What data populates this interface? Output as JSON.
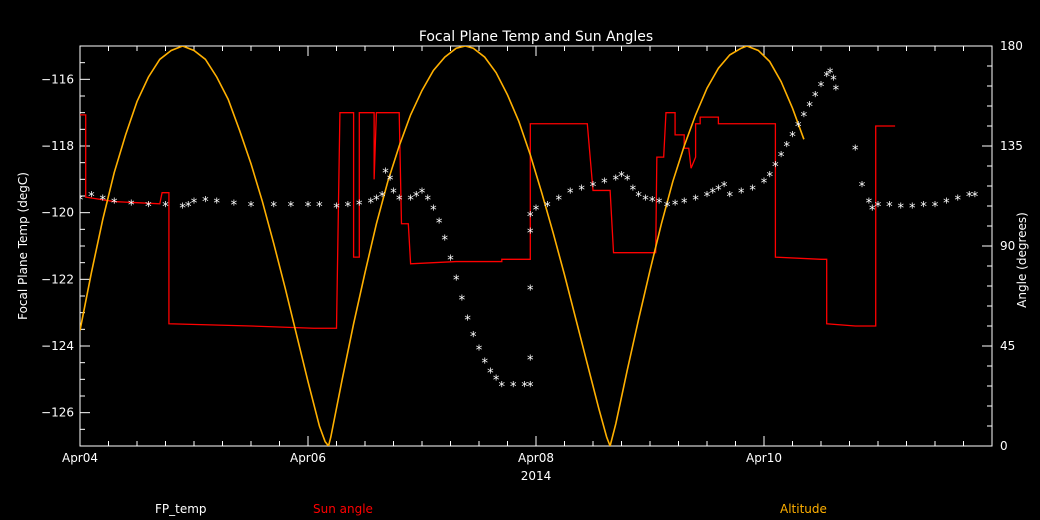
{
  "chart_data": {
    "type": "line",
    "title": "Focal Plane Temp and Sun Angles",
    "xlabel": "2014",
    "ylabel": "Focal Plane Temp (degC)",
    "y2label": "Angle (degrees)",
    "x_range": [
      0,
      8
    ],
    "x_ticks": [
      {
        "x": 0,
        "label": "Apr04"
      },
      {
        "x": 2,
        "label": "Apr06"
      },
      {
        "x": 4,
        "label": "Apr08"
      },
      {
        "x": 6,
        "label": "Apr10"
      }
    ],
    "ylim": [
      -127,
      -115
    ],
    "y_ticks": [
      -116,
      -118,
      -120,
      -122,
      -124,
      -126
    ],
    "y2lim": [
      0,
      180
    ],
    "y2_ticks": [
      0,
      45,
      90,
      135,
      180
    ],
    "grid": false,
    "legend_position": "bottom",
    "colors": {
      "background": "#000000",
      "axes": "#ffffff",
      "fp_temp": "#ffffff",
      "sun_angle": "#ff0000",
      "altitude": "#ffb000"
    },
    "series": [
      {
        "name": "FP_temp",
        "axis": "left",
        "marker": "star",
        "points": [
          [
            0.0,
            -119.6
          ],
          [
            0.1,
            -119.5
          ],
          [
            0.2,
            -119.6
          ],
          [
            0.3,
            -119.7
          ],
          [
            0.45,
            -119.75
          ],
          [
            0.6,
            -119.8
          ],
          [
            0.75,
            -119.8
          ],
          [
            0.9,
            -119.85
          ],
          [
            0.95,
            -119.8
          ],
          [
            1.0,
            -119.7
          ],
          [
            1.1,
            -119.65
          ],
          [
            1.2,
            -119.7
          ],
          [
            1.35,
            -119.75
          ],
          [
            1.5,
            -119.8
          ],
          [
            1.7,
            -119.8
          ],
          [
            1.85,
            -119.8
          ],
          [
            2.0,
            -119.8
          ],
          [
            2.1,
            -119.8
          ],
          [
            2.25,
            -119.85
          ],
          [
            2.35,
            -119.8
          ],
          [
            2.45,
            -119.75
          ],
          [
            2.55,
            -119.7
          ],
          [
            2.6,
            -119.6
          ],
          [
            2.65,
            -119.5
          ],
          [
            2.68,
            -118.8
          ],
          [
            2.72,
            -119.0
          ],
          [
            2.75,
            -119.4
          ],
          [
            2.8,
            -119.6
          ],
          [
            2.9,
            -119.6
          ],
          [
            2.95,
            -119.5
          ],
          [
            3.0,
            -119.4
          ],
          [
            3.05,
            -119.6
          ],
          [
            3.1,
            -119.9
          ],
          [
            3.15,
            -120.3
          ],
          [
            3.2,
            -120.8
          ],
          [
            3.25,
            -121.4
          ],
          [
            3.3,
            -122.0
          ],
          [
            3.35,
            -122.6
          ],
          [
            3.4,
            -123.2
          ],
          [
            3.45,
            -123.7
          ],
          [
            3.5,
            -124.1
          ],
          [
            3.55,
            -124.5
          ],
          [
            3.6,
            -124.8
          ],
          [
            3.65,
            -125.0
          ],
          [
            3.7,
            -125.2
          ],
          [
            3.8,
            -125.2
          ],
          [
            3.9,
            -125.2
          ],
          [
            3.95,
            -125.2
          ],
          [
            3.95,
            -124.4
          ],
          [
            3.95,
            -122.3
          ],
          [
            3.95,
            -120.6
          ],
          [
            3.95,
            -120.1
          ],
          [
            4.0,
            -119.9
          ],
          [
            4.1,
            -119.8
          ],
          [
            4.2,
            -119.6
          ],
          [
            4.3,
            -119.4
          ],
          [
            4.4,
            -119.3
          ],
          [
            4.5,
            -119.2
          ],
          [
            4.6,
            -119.1
          ],
          [
            4.7,
            -119.0
          ],
          [
            4.75,
            -118.9
          ],
          [
            4.8,
            -119.0
          ],
          [
            4.85,
            -119.3
          ],
          [
            4.9,
            -119.5
          ],
          [
            4.96,
            -119.6
          ],
          [
            5.02,
            -119.65
          ],
          [
            5.08,
            -119.7
          ],
          [
            5.15,
            -119.8
          ],
          [
            5.22,
            -119.75
          ],
          [
            5.3,
            -119.7
          ],
          [
            5.4,
            -119.6
          ],
          [
            5.5,
            -119.5
          ],
          [
            5.55,
            -119.4
          ],
          [
            5.6,
            -119.3
          ],
          [
            5.65,
            -119.2
          ],
          [
            5.7,
            -119.5
          ],
          [
            5.8,
            -119.4
          ],
          [
            5.9,
            -119.3
          ],
          [
            6.0,
            -119.1
          ],
          [
            6.05,
            -118.9
          ],
          [
            6.1,
            -118.6
          ],
          [
            6.15,
            -118.3
          ],
          [
            6.2,
            -118.0
          ],
          [
            6.25,
            -117.7
          ],
          [
            6.3,
            -117.4
          ],
          [
            6.35,
            -117.1
          ],
          [
            6.4,
            -116.8
          ],
          [
            6.45,
            -116.5
          ],
          [
            6.5,
            -116.2
          ],
          [
            6.55,
            -115.9
          ],
          [
            6.58,
            -115.8
          ],
          [
            6.61,
            -116.0
          ],
          [
            6.63,
            -116.3
          ],
          [
            6.8,
            -118.1
          ],
          [
            6.86,
            -119.2
          ],
          [
            6.92,
            -119.7
          ],
          [
            6.95,
            -119.9
          ],
          [
            7.0,
            -119.8
          ],
          [
            7.1,
            -119.8
          ],
          [
            7.2,
            -119.85
          ],
          [
            7.3,
            -119.85
          ],
          [
            7.4,
            -119.8
          ],
          [
            7.5,
            -119.8
          ],
          [
            7.6,
            -119.7
          ],
          [
            7.7,
            -119.6
          ],
          [
            7.8,
            -119.5
          ],
          [
            7.85,
            -119.5
          ]
        ]
      },
      {
        "name": "Sun angle",
        "axis": "right",
        "step": true,
        "points": [
          [
            0.0,
            149
          ],
          [
            0.05,
            149
          ],
          [
            0.05,
            112
          ],
          [
            0.3,
            110
          ],
          [
            0.7,
            109
          ],
          [
            0.72,
            114
          ],
          [
            0.78,
            114
          ],
          [
            0.78,
            55
          ],
          [
            1.5,
            54
          ],
          [
            2.05,
            53
          ],
          [
            2.25,
            53
          ],
          [
            2.28,
            150
          ],
          [
            2.4,
            150
          ],
          [
            2.4,
            85
          ],
          [
            2.45,
            85
          ],
          [
            2.45,
            150
          ],
          [
            2.58,
            150
          ],
          [
            2.58,
            120
          ],
          [
            2.6,
            150
          ],
          [
            2.8,
            150
          ],
          [
            2.82,
            100
          ],
          [
            2.88,
            100
          ],
          [
            2.9,
            82
          ],
          [
            3.3,
            83
          ],
          [
            3.7,
            83
          ],
          [
            3.7,
            84
          ],
          [
            3.95,
            84
          ],
          [
            3.95,
            145
          ],
          [
            4.15,
            145
          ],
          [
            4.15,
            145
          ],
          [
            4.45,
            145
          ],
          [
            4.5,
            115
          ],
          [
            4.65,
            115
          ],
          [
            4.68,
            87
          ],
          [
            4.8,
            87
          ],
          [
            5.0,
            87
          ],
          [
            5.05,
            87
          ],
          [
            5.06,
            130
          ],
          [
            5.12,
            130
          ],
          [
            5.14,
            150
          ],
          [
            5.22,
            150
          ],
          [
            5.22,
            140
          ],
          [
            5.3,
            140
          ],
          [
            5.3,
            134
          ],
          [
            5.34,
            134
          ],
          [
            5.36,
            125
          ],
          [
            5.4,
            130
          ],
          [
            5.4,
            145
          ],
          [
            5.44,
            145
          ],
          [
            5.44,
            148
          ],
          [
            5.6,
            148
          ],
          [
            5.6,
            145
          ],
          [
            5.9,
            145
          ],
          [
            6.06,
            145
          ],
          [
            6.1,
            145
          ],
          [
            6.1,
            85
          ],
          [
            6.5,
            84
          ],
          [
            6.55,
            84
          ],
          [
            6.55,
            55
          ],
          [
            6.8,
            54
          ],
          [
            6.98,
            54
          ],
          [
            6.98,
            144
          ],
          [
            7.15,
            144
          ],
          [
            7.15,
            144
          ]
        ]
      },
      {
        "name": "Altitude",
        "axis": "right",
        "points": [
          [
            0.0,
            52
          ],
          [
            0.1,
            78
          ],
          [
            0.2,
            102
          ],
          [
            0.3,
            123
          ],
          [
            0.4,
            140
          ],
          [
            0.5,
            155
          ],
          [
            0.6,
            166
          ],
          [
            0.7,
            174
          ],
          [
            0.8,
            178
          ],
          [
            0.9,
            180
          ],
          [
            1.0,
            178
          ],
          [
            1.1,
            174
          ],
          [
            1.2,
            166
          ],
          [
            1.3,
            156
          ],
          [
            1.4,
            142
          ],
          [
            1.5,
            127
          ],
          [
            1.6,
            110
          ],
          [
            1.7,
            91
          ],
          [
            1.8,
            71
          ],
          [
            1.9,
            50
          ],
          [
            2.0,
            29
          ],
          [
            2.05,
            19
          ],
          [
            2.1,
            9
          ],
          [
            2.15,
            2
          ],
          [
            2.18,
            0
          ],
          [
            2.2,
            4
          ],
          [
            2.3,
            30
          ],
          [
            2.4,
            55
          ],
          [
            2.5,
            78
          ],
          [
            2.6,
            100
          ],
          [
            2.7,
            119
          ],
          [
            2.8,
            135
          ],
          [
            2.9,
            149
          ],
          [
            3.0,
            160
          ],
          [
            3.1,
            169
          ],
          [
            3.2,
            175
          ],
          [
            3.3,
            179
          ],
          [
            3.38,
            180
          ],
          [
            3.45,
            179
          ],
          [
            3.55,
            175
          ],
          [
            3.65,
            168
          ],
          [
            3.75,
            158
          ],
          [
            3.85,
            146
          ],
          [
            3.95,
            131
          ],
          [
            4.05,
            114
          ],
          [
            4.15,
            96
          ],
          [
            4.25,
            77
          ],
          [
            4.35,
            57
          ],
          [
            4.45,
            37
          ],
          [
            4.55,
            17
          ],
          [
            4.62,
            4
          ],
          [
            4.65,
            0
          ],
          [
            4.7,
            10
          ],
          [
            4.8,
            34
          ],
          [
            4.9,
            57
          ],
          [
            5.0,
            79
          ],
          [
            5.1,
            100
          ],
          [
            5.2,
            119
          ],
          [
            5.3,
            135
          ],
          [
            5.4,
            149
          ],
          [
            5.5,
            161
          ],
          [
            5.6,
            170
          ],
          [
            5.7,
            176
          ],
          [
            5.8,
            179
          ],
          [
            5.85,
            180
          ],
          [
            5.95,
            178
          ],
          [
            6.05,
            173
          ],
          [
            6.15,
            164
          ],
          [
            6.25,
            152
          ],
          [
            6.35,
            138
          ]
        ]
      }
    ]
  }
}
